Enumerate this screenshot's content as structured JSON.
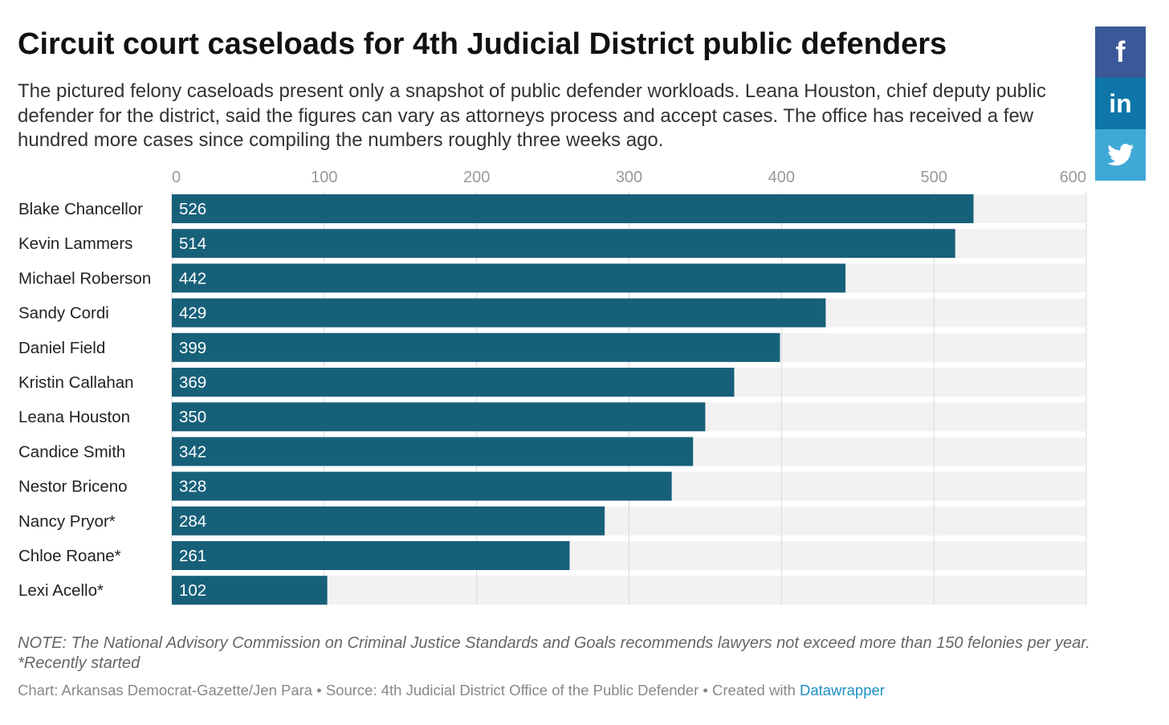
{
  "header": {
    "title": "Circuit court caseloads for 4th Judicial District public defenders",
    "subtitle": "The pictured felony caseloads present only a snapshot of public defender workloads. Leana Houston, chief deputy public defender for the district, said the figures can vary as attorneys process and accept cases. The office has received a few hundred more cases since compiling the numbers roughly three weeks ago."
  },
  "social": {
    "facebook": "f",
    "linkedin": "in",
    "twitter_icon": "twitter-bird-icon",
    "colors": {
      "facebook": "#3b5998",
      "linkedin": "#0e76a8",
      "twitter": "#3fa9d6"
    }
  },
  "chart_data": {
    "type": "bar",
    "orientation": "horizontal",
    "categories": [
      "Blake Chancellor",
      "Kevin Lammers",
      "Michael Roberson",
      "Sandy Cordi",
      "Daniel Field",
      "Kristin Callahan",
      "Leana Houston",
      "Candice Smith",
      "Nestor Briceno",
      "Nancy Pryor*",
      "Chloe Roane*",
      "Lexi Acello*"
    ],
    "values": [
      526,
      514,
      442,
      429,
      399,
      369,
      350,
      342,
      328,
      284,
      261,
      102
    ],
    "xticks": [
      0,
      100,
      200,
      300,
      400,
      500,
      600
    ],
    "xlim": [
      0,
      600
    ],
    "grid": true,
    "legend": "none",
    "bar_color": "#17607a",
    "track_color": "#f2f2f2",
    "grid_color": "#d9d9d9",
    "title": "",
    "xlabel": "",
    "ylabel": ""
  },
  "footer": {
    "note": "NOTE: The National Advisory Commission on Criminal Justice Standards and Goals recommends lawyers not exceed more than 150 felonies per year.",
    "note2": "*Recently started",
    "credits_prefix": "Chart: Arkansas Democrat-Gazette/Jen Para • Source: 4th Judicial District Office of the Public Defender • Created with ",
    "credits_link": "Datawrapper",
    "link_color": "#1d8fc4"
  }
}
